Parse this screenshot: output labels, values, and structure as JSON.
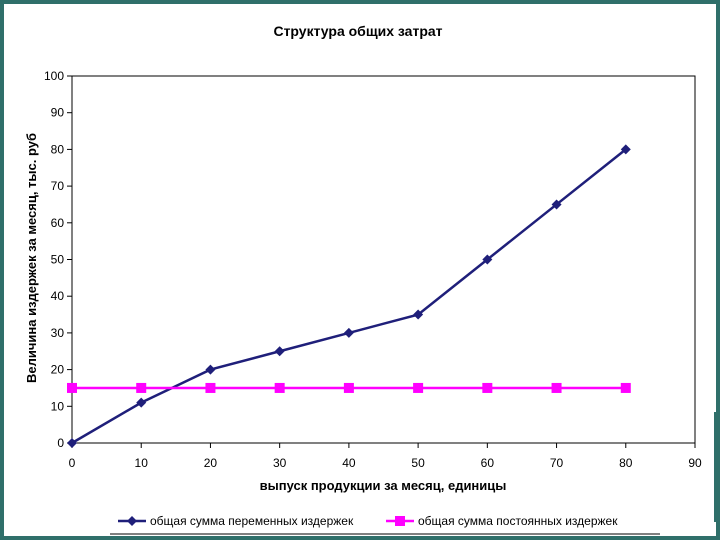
{
  "chart_data": {
    "type": "line",
    "title": "Структура общих затрат",
    "xlabel": "выпуск продукции за месяц, единицы",
    "ylabel": "Величина издержек за месяц, тыс. руб",
    "xlim": [
      0,
      90
    ],
    "ylim": [
      0,
      100
    ],
    "xticks": [
      0,
      10,
      20,
      30,
      40,
      50,
      60,
      70,
      80,
      90
    ],
    "yticks": [
      0,
      10,
      20,
      30,
      40,
      50,
      60,
      70,
      80,
      90,
      100
    ],
    "grid": false,
    "legend_position": "bottom",
    "series": [
      {
        "name": "общая сумма переменных издержек",
        "color": "#1f1f7a",
        "marker": "diamond",
        "x": [
          0,
          10,
          20,
          30,
          40,
          50,
          60,
          70,
          80
        ],
        "y": [
          0,
          11,
          20,
          25,
          30,
          35,
          50,
          65,
          80
        ]
      },
      {
        "name": "общая сумма постоянных издержек",
        "color": "#ff00ff",
        "marker": "square",
        "x": [
          0,
          10,
          20,
          30,
          40,
          50,
          60,
          70,
          80
        ],
        "y": [
          15,
          15,
          15,
          15,
          15,
          15,
          15,
          15,
          15
        ]
      }
    ]
  }
}
